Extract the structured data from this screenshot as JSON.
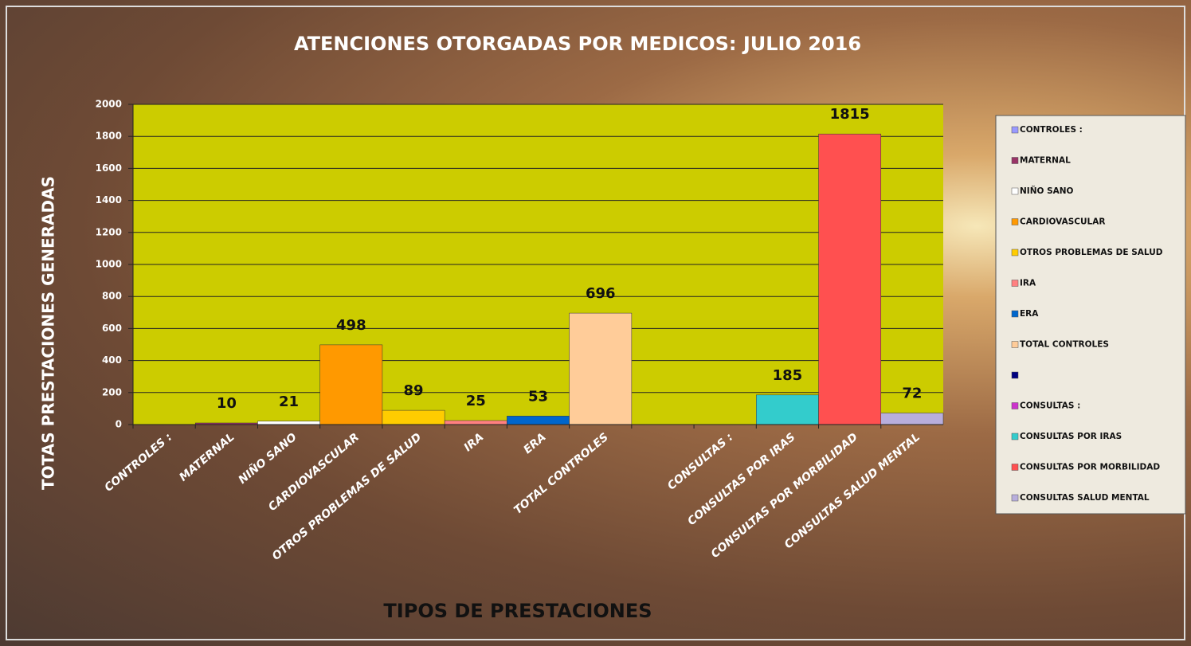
{
  "chart_data": {
    "type": "bar",
    "title": "ATENCIONES OTORGADAS  POR MEDICOS: JULIO    2016",
    "x_label": "TIPOS DE  PRESTACIONES",
    "y_label": "TOTAS PRESTACIONES  GENERADAS",
    "categories": [
      "CONTROLES :",
      "MATERNAL",
      "NIÑO SANO",
      "CARDIOVASCULAR",
      "OTROS PROBLEMAS DE SALUD",
      "IRA",
      "ERA",
      "TOTAL CONTROLES",
      null,
      "CONSULTAS :",
      "CONSULTAS  POR IRAS",
      "CONSULTAS POR MORBILIDAD",
      "CONSULTAS SALUD MENTAL"
    ],
    "values": [
      null,
      10,
      21,
      498,
      89,
      25,
      53,
      696,
      null,
      null,
      185,
      1815,
      72
    ],
    "colors": [
      "#9999ff",
      "#993366",
      "#ffffff",
      "#ff9900",
      "#ffcc00",
      "#ff8080",
      "#0066cc",
      "#ffcc99",
      "#000080",
      "#cc33cc",
      "#33cccc",
      "#ff5050",
      "#b8aedc"
    ],
    "plot_background": "#cccc00",
    "ylim": [
      0,
      2000
    ],
    "yticks": [
      0,
      200,
      400,
      600,
      800,
      1000,
      1200,
      1400,
      1600,
      1800,
      2000
    ],
    "grid": true,
    "legend": "right"
  }
}
